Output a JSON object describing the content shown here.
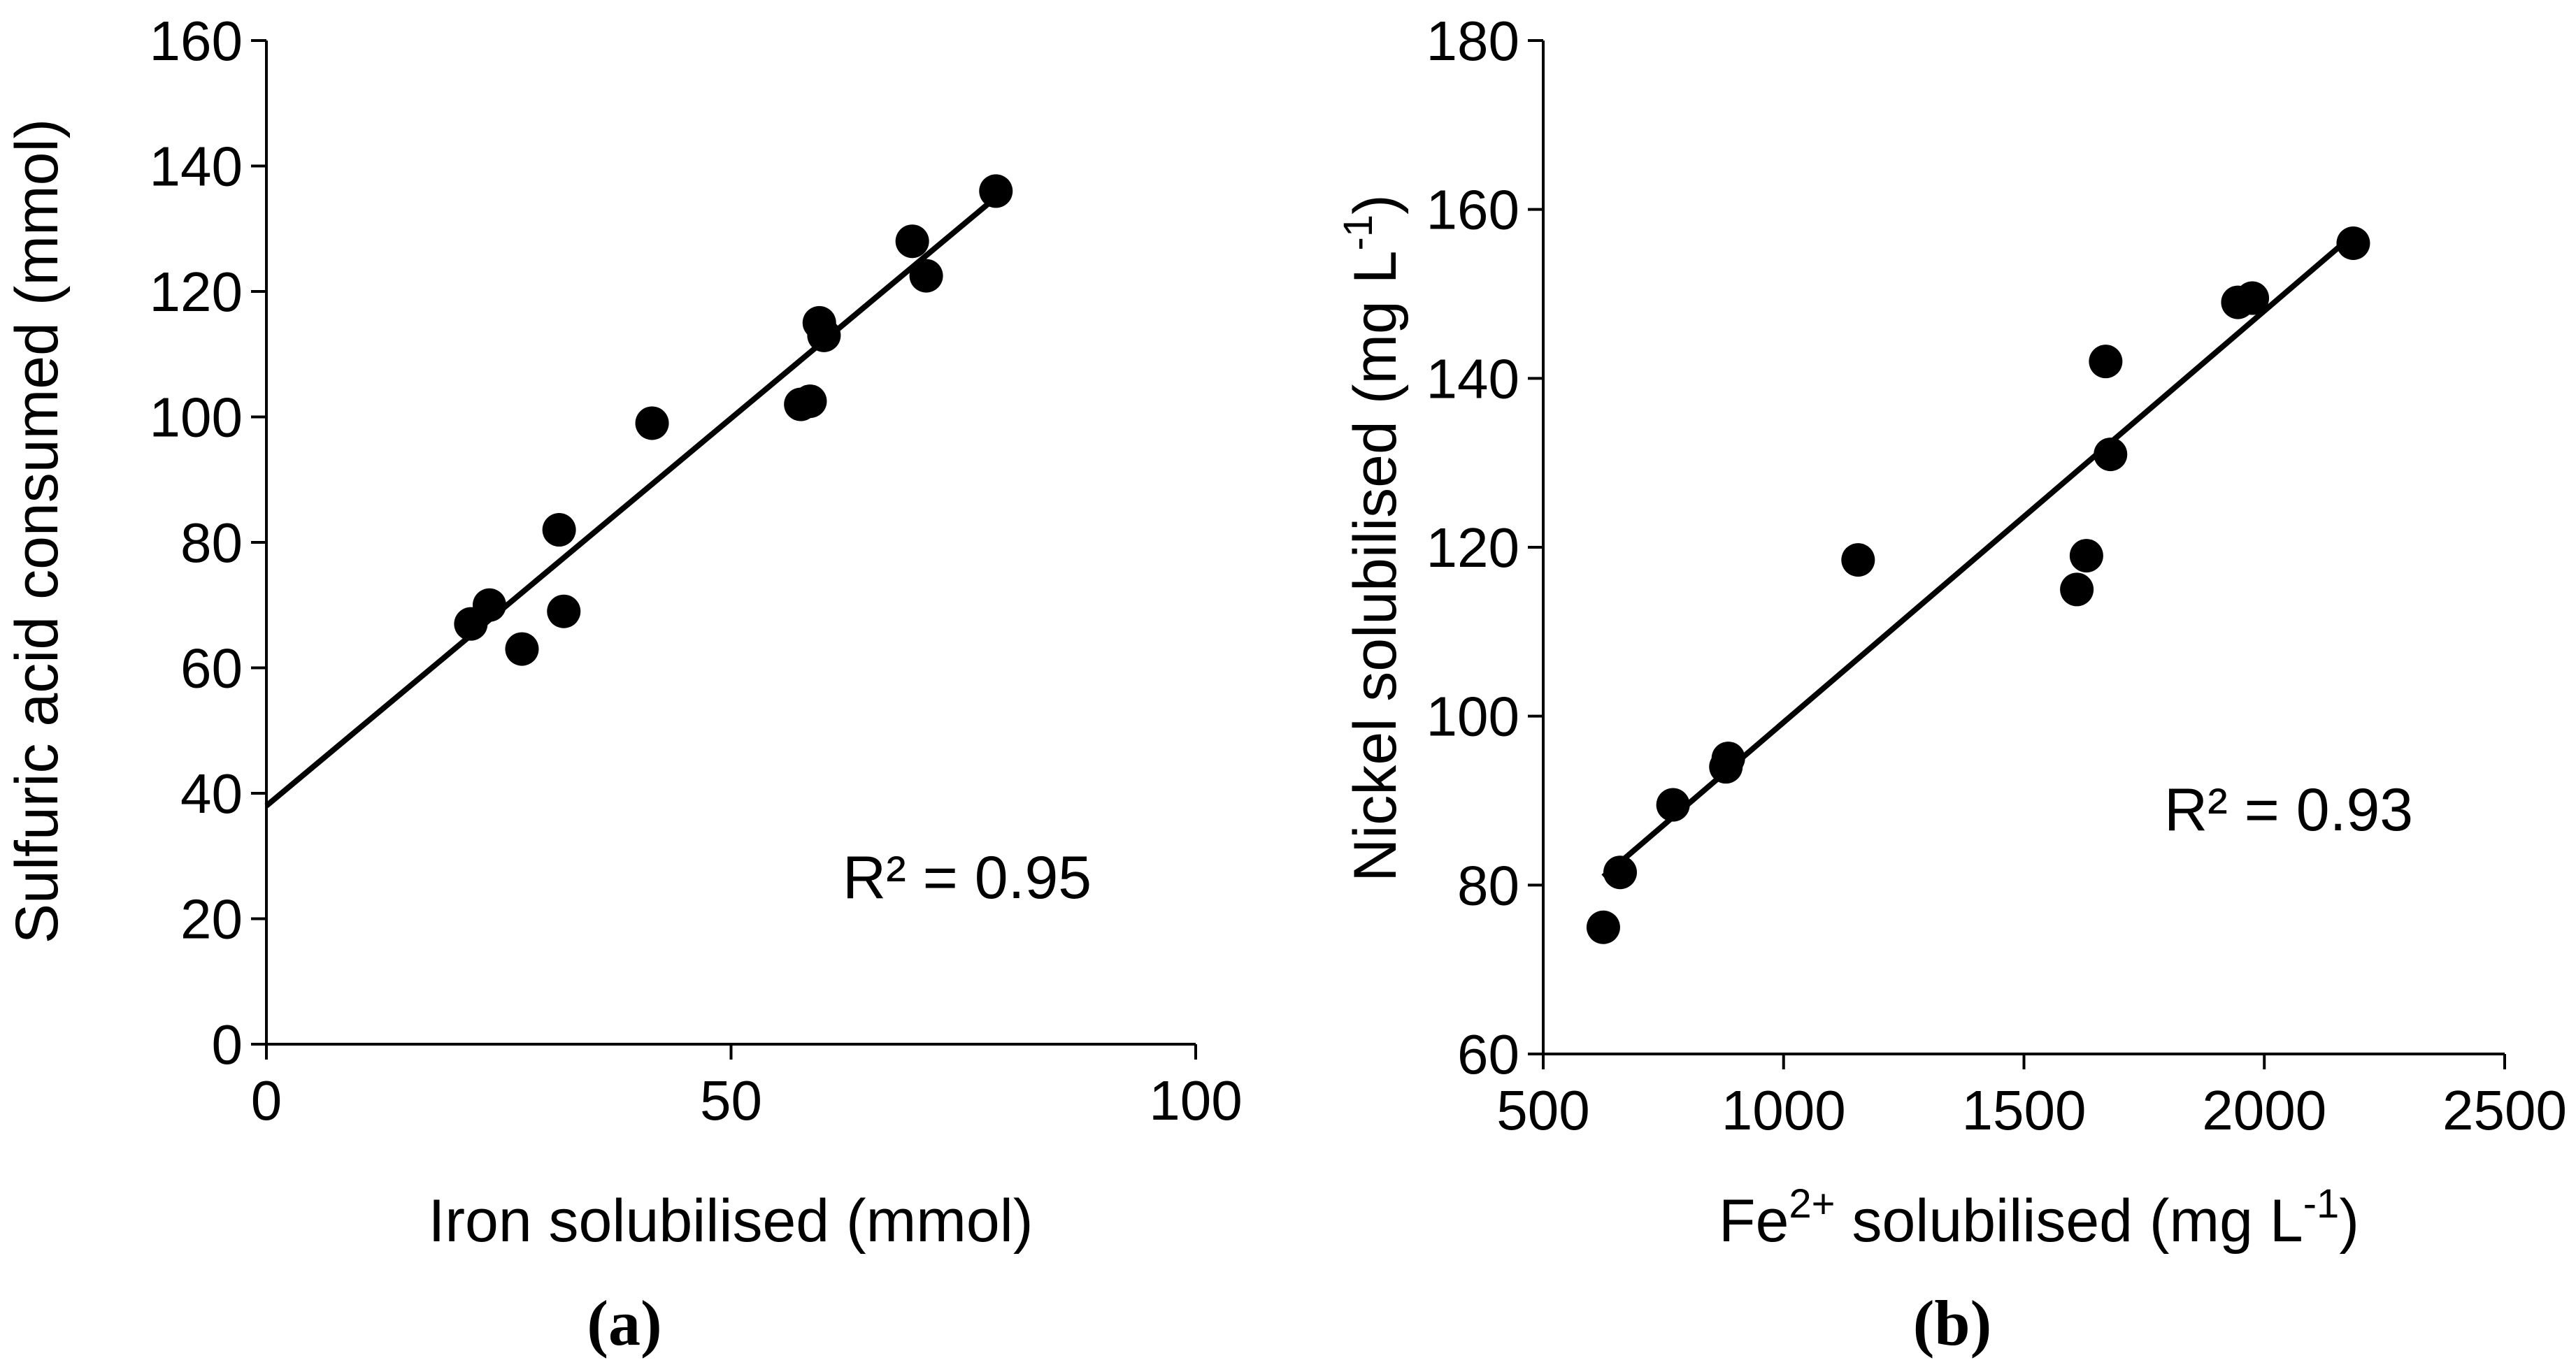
{
  "chart_data": [
    {
      "type": "scatter",
      "panel_label": "a",
      "xlabel": "Iron solubilised  (mmol)",
      "ylabel": "Sulfuric acid consumed (mmol)",
      "xlim": [
        0,
        100
      ],
      "ylim": [
        0,
        160
      ],
      "x_ticks": [
        0,
        50,
        100
      ],
      "y_ticks": [
        0,
        20,
        40,
        60,
        80,
        100,
        120,
        140,
        160
      ],
      "grid": false,
      "annotation": "R² = 0.95",
      "points": [
        {
          "x": 22,
          "y": 67
        },
        {
          "x": 24,
          "y": 70
        },
        {
          "x": 27.5,
          "y": 63
        },
        {
          "x": 31.5,
          "y": 82
        },
        {
          "x": 32,
          "y": 69
        },
        {
          "x": 41.5,
          "y": 99
        },
        {
          "x": 57.5,
          "y": 102
        },
        {
          "x": 58.5,
          "y": 102.5
        },
        {
          "x": 59.5,
          "y": 115
        },
        {
          "x": 60,
          "y": 113
        },
        {
          "x": 69.5,
          "y": 128
        },
        {
          "x": 71,
          "y": 122.5
        },
        {
          "x": 78.5,
          "y": 136
        }
      ],
      "trendline": {
        "x": [
          0,
          78.5
        ],
        "y": [
          38,
          135
        ]
      }
    },
    {
      "type": "scatter",
      "panel_label": "b",
      "xlabel_main": "Fe",
      "xlabel_sup": "2+",
      "xlabel_mid": " solubilised  (mg L",
      "xlabel_sup2": "-1",
      "xlabel_end": ")",
      "ylabel_main": "Nickel solubilised  (mg L",
      "ylabel_sup": "-1",
      "ylabel_end": ")",
      "xlim": [
        500,
        2500
      ],
      "ylim": [
        60,
        180
      ],
      "x_ticks": [
        500,
        1000,
        1500,
        2000,
        2500
      ],
      "y_ticks": [
        60,
        80,
        100,
        120,
        140,
        160,
        180
      ],
      "grid": false,
      "annotation": "R² = 0.93",
      "points": [
        {
          "x": 625,
          "y": 75
        },
        {
          "x": 660,
          "y": 81.5
        },
        {
          "x": 770,
          "y": 89.5
        },
        {
          "x": 880,
          "y": 94
        },
        {
          "x": 885,
          "y": 95
        },
        {
          "x": 1155,
          "y": 118.5
        },
        {
          "x": 1610,
          "y": 115
        },
        {
          "x": 1630,
          "y": 119
        },
        {
          "x": 1670,
          "y": 142
        },
        {
          "x": 1680,
          "y": 131
        },
        {
          "x": 1945,
          "y": 149
        },
        {
          "x": 1975,
          "y": 149.5
        },
        {
          "x": 2185,
          "y": 156
        }
      ],
      "trendline": {
        "x": [
          625,
          2185
        ],
        "y": [
          81,
          157
        ]
      }
    }
  ]
}
